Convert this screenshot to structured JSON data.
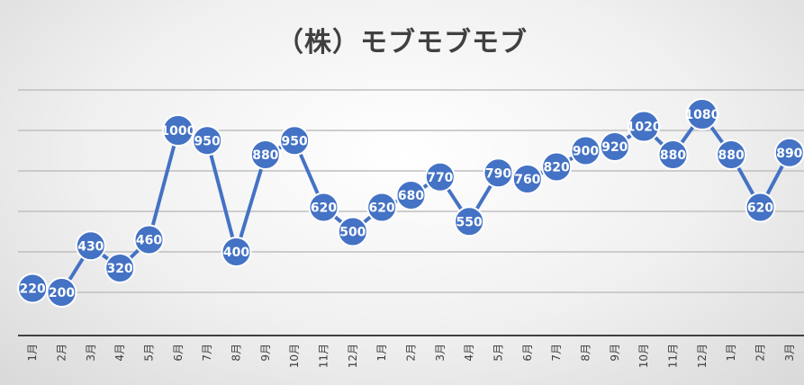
{
  "chart_data": {
    "type": "line",
    "title": "（株）モブモブモブ",
    "categories": [
      "1月",
      "2月",
      "3月",
      "4月",
      "5月",
      "6月",
      "7月",
      "8月",
      "9月",
      "10月",
      "11月",
      "12月",
      "1月",
      "2月",
      "3月",
      "4月",
      "5月",
      "6月",
      "7月",
      "8月",
      "9月",
      "10月",
      "11月",
      "12月",
      "1月",
      "2月",
      "3月"
    ],
    "series": [
      {
        "values": [
          220,
          200,
          430,
          320,
          460,
          1000,
          950,
          400,
          880,
          950,
          620,
          500,
          620,
          680,
          770,
          550,
          790,
          760,
          820,
          900,
          920,
          1020,
          880,
          1080,
          880,
          620,
          890
        ]
      }
    ],
    "xlabel": "",
    "ylabel": "",
    "ylim": [
      0,
      1200
    ],
    "y_axis_labels_visible": false,
    "grid": true,
    "data_labels": true,
    "colors": {
      "series": "#4472c4",
      "grid": "#bfbfbf",
      "axis": "#404040",
      "title": "#404040"
    }
  }
}
